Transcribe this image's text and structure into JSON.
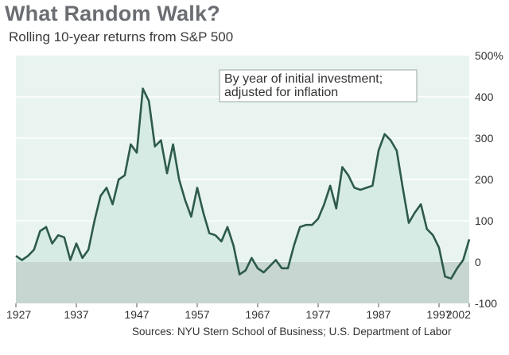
{
  "chart_data": {
    "type": "area",
    "title": "What Random Walk?",
    "subtitle": "Rolling 10-year returns from S&P 500",
    "annotation": [
      "By year of initial investment;",
      "adjusted for inflation"
    ],
    "source": "Sources: NYU Stern School of Business; U.S. Department of Labor",
    "xlim": [
      1927,
      2002
    ],
    "ylim": [
      -100,
      500
    ],
    "x_ticks": [
      1927,
      1937,
      1947,
      1957,
      1967,
      1977,
      1987,
      1997,
      2002
    ],
    "x_tick_labels": [
      "1927",
      "1937",
      "1947",
      "1957",
      "1967",
      "1977",
      "1987",
      "1997",
      "2002"
    ],
    "y_ticks": [
      500,
      400,
      300,
      200,
      100,
      0,
      -100
    ],
    "y_tick_labels": [
      "500%",
      "400",
      "300",
      "200",
      "100",
      "0",
      "-100"
    ],
    "grid": "horizontal",
    "colors": {
      "line": "#2d5a4d",
      "area": "#d6ebe4",
      "negative_area": "#c8d6d2",
      "plot_bg": "#e9f4f0",
      "grid": "#ffffff"
    },
    "series": [
      {
        "x": [
          1927,
          1928,
          1929,
          1930,
          1931,
          1932,
          1933,
          1934,
          1935,
          1936,
          1937,
          1938,
          1939,
          1940,
          1941,
          1942,
          1943,
          1944,
          1945,
          1946,
          1947,
          1948,
          1949,
          1950,
          1951,
          1952,
          1953,
          1954,
          1955,
          1956,
          1957,
          1958,
          1959,
          1960,
          1961,
          1962,
          1963,
          1964,
          1965,
          1966,
          1967,
          1968,
          1969,
          1970,
          1971,
          1972,
          1973,
          1974,
          1975,
          1976,
          1977,
          1978,
          1979,
          1980,
          1981,
          1982,
          1983,
          1984,
          1985,
          1986,
          1987,
          1988,
          1989,
          1990,
          1991,
          1992,
          1993,
          1994,
          1995,
          1996,
          1997,
          1998,
          1999,
          2000,
          2001,
          2002
        ],
        "values": [
          15,
          5,
          15,
          30,
          75,
          85,
          45,
          65,
          60,
          5,
          45,
          10,
          30,
          100,
          160,
          180,
          140,
          200,
          210,
          285,
          265,
          420,
          390,
          280,
          295,
          215,
          285,
          200,
          150,
          110,
          180,
          120,
          70,
          65,
          50,
          85,
          40,
          -30,
          -20,
          10,
          -15,
          -25,
          -10,
          5,
          -15,
          -15,
          40,
          85,
          90,
          90,
          105,
          140,
          185,
          130,
          230,
          210,
          180,
          175,
          180,
          185,
          270,
          310,
          295,
          270,
          180,
          95,
          120,
          140,
          80,
          65,
          35,
          -35,
          -40,
          -15,
          5,
          55
        ]
      }
    ]
  }
}
